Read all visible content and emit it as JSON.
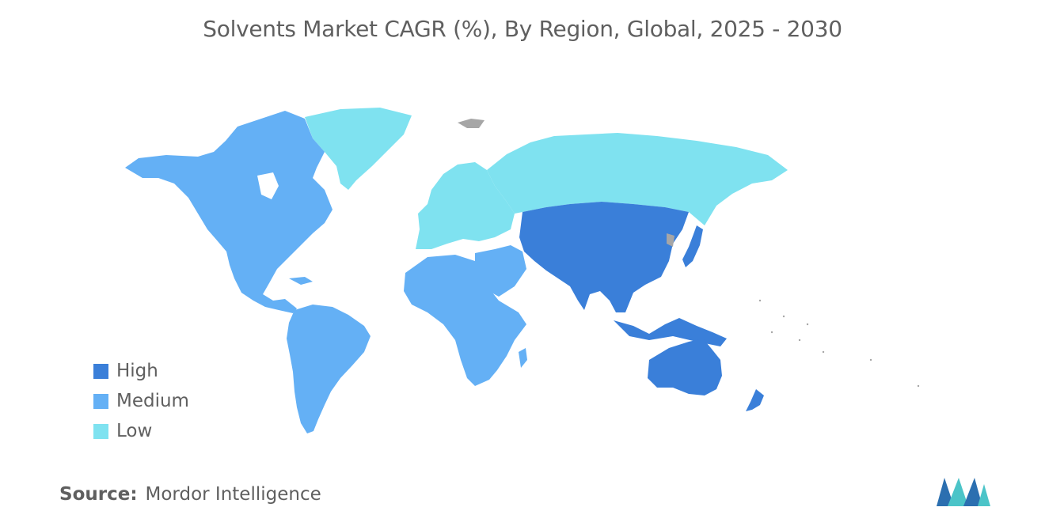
{
  "title": "Solvents Market CAGR (%), By Region, Global, 2025 - 2030",
  "legend": [
    {
      "label": "High",
      "color": "#3a7fd9"
    },
    {
      "label": "Medium",
      "color": "#64b0f5"
    },
    {
      "label": "Low",
      "color": "#7fe2f0"
    }
  ],
  "source": {
    "label": "Source:",
    "value": "Mordor Intelligence"
  },
  "regions": [
    {
      "name": "North America",
      "level": "Medium"
    },
    {
      "name": "South America",
      "level": "Medium"
    },
    {
      "name": "Africa",
      "level": "Medium"
    },
    {
      "name": "Middle East",
      "level": "Medium"
    },
    {
      "name": "Europe",
      "level": "Low"
    },
    {
      "name": "Russia",
      "level": "Low"
    },
    {
      "name": "Greenland",
      "level": "Low"
    },
    {
      "name": "Asia-Pacific",
      "level": "High"
    },
    {
      "name": "Australia",
      "level": "High"
    },
    {
      "name": "New Zealand",
      "level": "High"
    },
    {
      "name": "Japan",
      "level": "High"
    }
  ],
  "nodata_color": "#a6a6a6",
  "logo_icon": "mordor-intelligence-logo-icon"
}
